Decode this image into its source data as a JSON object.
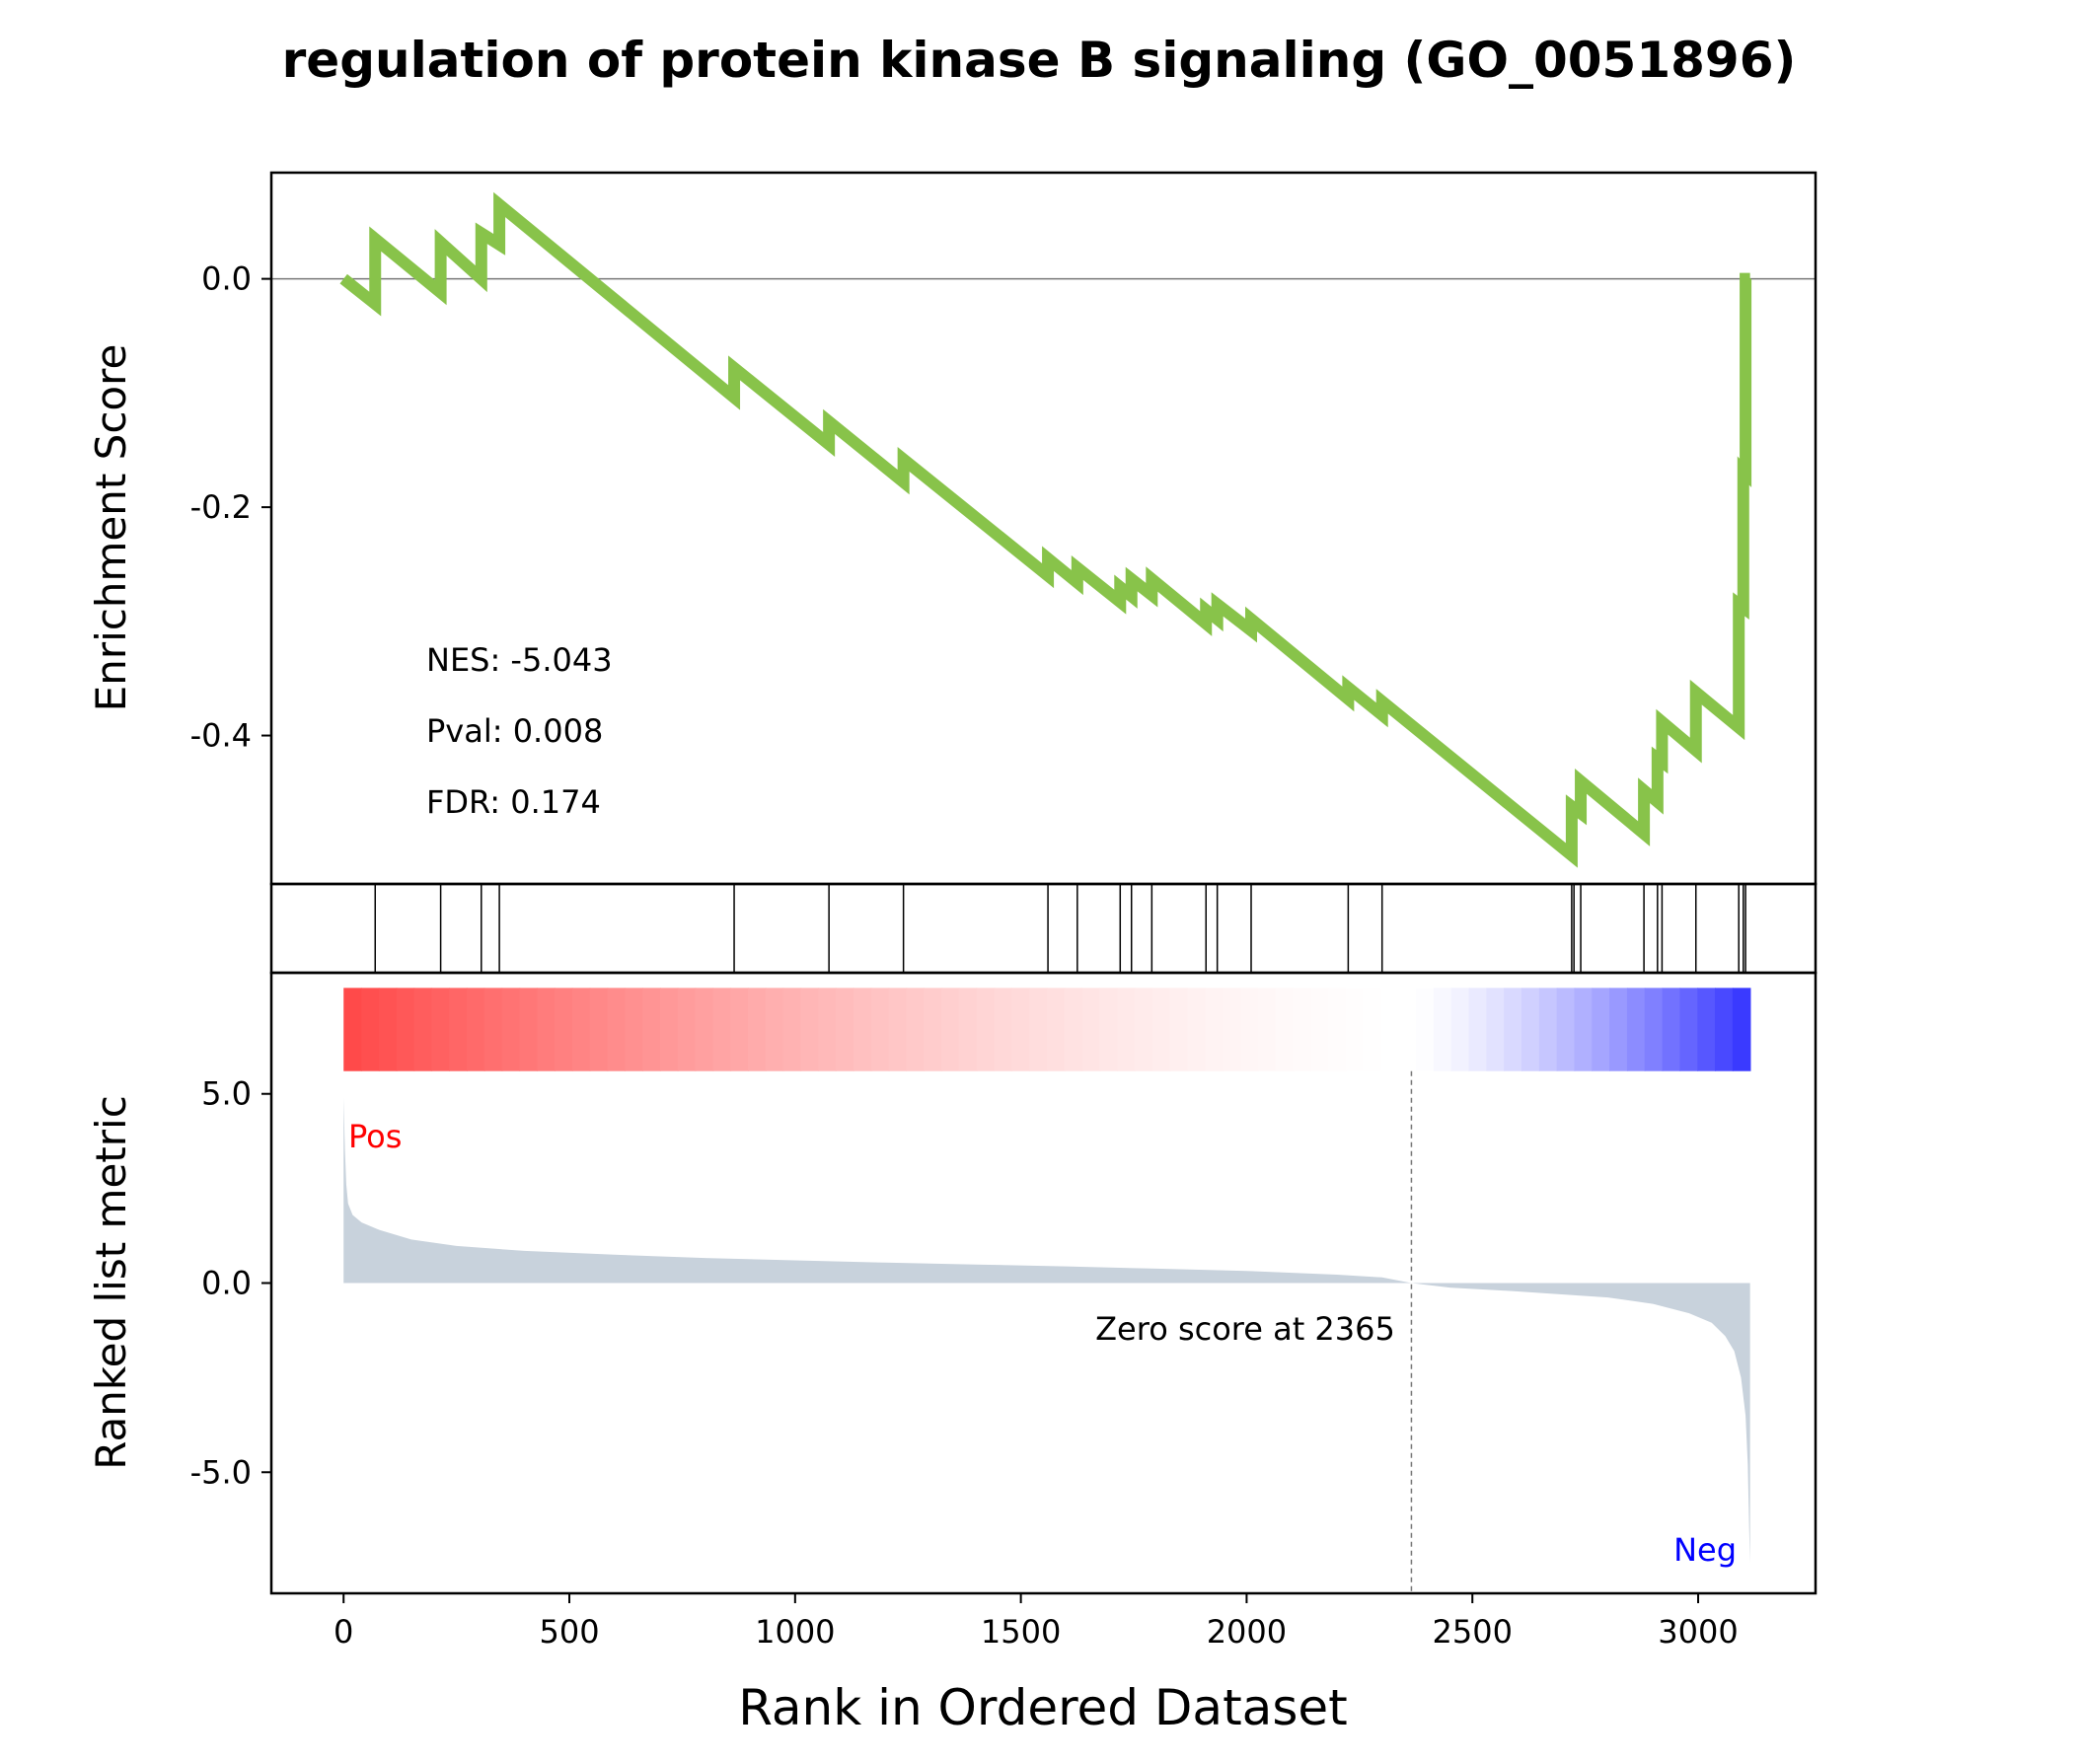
{
  "chart_data": {
    "type": "line",
    "title": "regulation of protein kinase B signaling (GO_0051896)",
    "xlabel": "Rank in Ordered Dataset",
    "xlim": [
      -160,
      3260
    ],
    "xticks": [
      0,
      500,
      1000,
      1500,
      2000,
      2500,
      3000
    ],
    "colors": {
      "es_line": "#88c34a",
      "metric_fill": "#c8d2dc",
      "pos": "#ff0000",
      "neg": "#0000ff",
      "axes": "#000000",
      "zero_line": "#777777"
    },
    "enrichment": {
      "ylabel": "Enrichment Score",
      "ylim": [
        -0.53,
        0.093
      ],
      "yticks": [
        0.0,
        -0.2,
        -0.4
      ],
      "ytick_labels": [
        "0.0",
        "-0.2",
        "-0.4"
      ],
      "annotations": [
        "NES: -5.043",
        "Pval: 0.008",
        "FDR: 0.174"
      ],
      "points": [
        [
          0,
          0.0
        ],
        [
          70,
          -0.022
        ],
        [
          70,
          0.035
        ],
        [
          215,
          -0.012
        ],
        [
          215,
          0.032
        ],
        [
          305,
          0.0
        ],
        [
          305,
          0.04
        ],
        [
          345,
          0.03
        ],
        [
          345,
          0.065
        ],
        [
          865,
          -0.104
        ],
        [
          865,
          -0.078
        ],
        [
          1075,
          -0.145
        ],
        [
          1075,
          -0.125
        ],
        [
          1240,
          -0.178
        ],
        [
          1240,
          -0.158
        ],
        [
          1560,
          -0.26
        ],
        [
          1560,
          -0.245
        ],
        [
          1625,
          -0.266
        ],
        [
          1625,
          -0.253
        ],
        [
          1720,
          -0.283
        ],
        [
          1720,
          -0.27
        ],
        [
          1745,
          -0.278
        ],
        [
          1745,
          -0.263
        ],
        [
          1790,
          -0.277
        ],
        [
          1790,
          -0.263
        ],
        [
          1910,
          -0.302
        ],
        [
          1910,
          -0.29
        ],
        [
          1935,
          -0.298
        ],
        [
          1935,
          -0.285
        ],
        [
          2010,
          -0.308
        ],
        [
          2010,
          -0.298
        ],
        [
          2225,
          -0.368
        ],
        [
          2225,
          -0.358
        ],
        [
          2300,
          -0.382
        ],
        [
          2300,
          -0.37
        ],
        [
          2720,
          -0.505
        ],
        [
          2720,
          -0.462
        ],
        [
          2740,
          -0.468
        ],
        [
          2740,
          -0.44
        ],
        [
          2880,
          -0.486
        ],
        [
          2880,
          -0.448
        ],
        [
          2910,
          -0.458
        ],
        [
          2910,
          -0.42
        ],
        [
          2920,
          -0.423
        ],
        [
          2920,
          -0.388
        ],
        [
          2995,
          -0.413
        ],
        [
          2995,
          -0.362
        ],
        [
          3090,
          -0.393
        ],
        [
          3090,
          -0.285
        ],
        [
          3100,
          -0.288
        ],
        [
          3100,
          -0.168
        ],
        [
          3105,
          -0.17
        ],
        [
          3105,
          0.0
        ],
        [
          3115,
          0.0
        ]
      ]
    },
    "hits": [
      70,
      215,
      305,
      345,
      865,
      1075,
      1240,
      1560,
      1625,
      1720,
      1745,
      1790,
      1910,
      1935,
      2010,
      2225,
      2300,
      2720,
      2725,
      2740,
      2880,
      2910,
      2920,
      2995,
      3090,
      3100,
      3105
    ],
    "ranked_metric": {
      "ylabel": "Ranked list metric",
      "ylim": [
        -8.2,
        8.2
      ],
      "yticks": [
        5.0,
        0.0,
        -5.0
      ],
      "ytick_labels": [
        "5.0",
        "0.0",
        "-5.0"
      ],
      "pos_label": "Pos",
      "neg_label": "Neg",
      "zero_cross_label": "Zero score at 2365",
      "zero_cross": 2365,
      "n_genes": 3115,
      "heat_bar_top": 7.8,
      "heat_bar_bottom": 5.6,
      "points": [
        [
          0,
          4.9
        ],
        [
          3,
          3.5
        ],
        [
          6,
          2.6
        ],
        [
          10,
          2.1
        ],
        [
          20,
          1.8
        ],
        [
          40,
          1.6
        ],
        [
          80,
          1.4
        ],
        [
          150,
          1.15
        ],
        [
          250,
          0.98
        ],
        [
          400,
          0.85
        ],
        [
          600,
          0.75
        ],
        [
          800,
          0.66
        ],
        [
          1000,
          0.6
        ],
        [
          1200,
          0.54
        ],
        [
          1400,
          0.49
        ],
        [
          1600,
          0.44
        ],
        [
          1800,
          0.38
        ],
        [
          2000,
          0.32
        ],
        [
          2200,
          0.22
        ],
        [
          2300,
          0.15
        ],
        [
          2365,
          0.0
        ],
        [
          2450,
          -0.12
        ],
        [
          2600,
          -0.22
        ],
        [
          2800,
          -0.38
        ],
        [
          2900,
          -0.55
        ],
        [
          2980,
          -0.8
        ],
        [
          3030,
          -1.05
        ],
        [
          3060,
          -1.4
        ],
        [
          3080,
          -1.8
        ],
        [
          3095,
          -2.5
        ],
        [
          3105,
          -3.5
        ],
        [
          3110,
          -4.8
        ],
        [
          3113,
          -6.5
        ],
        [
          3115,
          -7.4
        ]
      ]
    }
  }
}
